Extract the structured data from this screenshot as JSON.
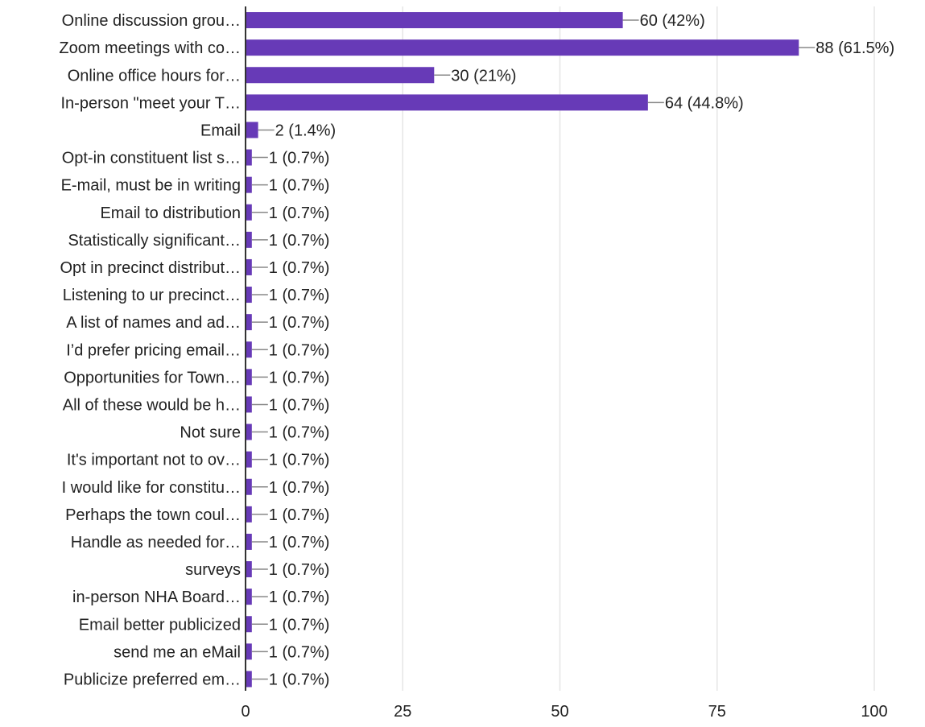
{
  "chart_data": {
    "type": "bar",
    "orientation": "horizontal",
    "categories": [
      "Online discussion grou…",
      "Zoom meetings with co…",
      "Online office hours for…",
      "In-person \"meet your T…",
      "Email",
      "Opt-in constituent list s…",
      "E-mail, must be in writing",
      "Email to distribution",
      "Statistically significant…",
      "Opt in precinct distribut…",
      "Listening to ur precinct…",
      "A list of names and ad…",
      "I’d prefer pricing email…",
      "Opportunities for Town…",
      "All of these would be h…",
      "Not sure",
      "It's important not to ov…",
      "I would like for constitu…",
      "Perhaps the town coul…",
      "Handle as needed for…",
      "surveys",
      "in-person NHA Board…",
      "Email better publicized",
      "send me an eMail",
      "Publicize preferred em…"
    ],
    "values": [
      60,
      88,
      30,
      64,
      2,
      1,
      1,
      1,
      1,
      1,
      1,
      1,
      1,
      1,
      1,
      1,
      1,
      1,
      1,
      1,
      1,
      1,
      1,
      1,
      1
    ],
    "data_labels": [
      "60 (42%)",
      "88 (61.5%)",
      "30 (21%)",
      "64 (44.8%)",
      "2 (1.4%)",
      "1 (0.7%)",
      "1 (0.7%)",
      "1 (0.7%)",
      "1 (0.7%)",
      "1 (0.7%)",
      "1 (0.7%)",
      "1 (0.7%)",
      "1 (0.7%)",
      "1 (0.7%)",
      "1 (0.7%)",
      "1 (0.7%)",
      "1 (0.7%)",
      "1 (0.7%)",
      "1 (0.7%)",
      "1 (0.7%)",
      "1 (0.7%)",
      "1 (0.7%)",
      "1 (0.7%)",
      "1 (0.7%)",
      "1 (0.7%)"
    ],
    "xlim": [
      0,
      100
    ],
    "xticks": [
      "0",
      "25",
      "50",
      "75",
      "100"
    ],
    "bar_color": "#673ab7",
    "grid": true
  }
}
